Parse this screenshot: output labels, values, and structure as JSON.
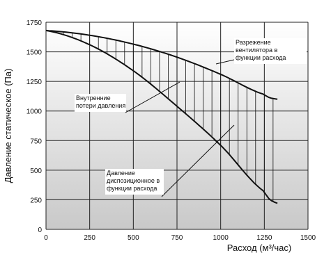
{
  "chart_data": {
    "type": "line",
    "xlabel": "Расход (м³/час)",
    "ylabel": "Давление статическое (Па)",
    "xlim": [
      0,
      1500
    ],
    "ylim": [
      0,
      1750
    ],
    "x_ticks": [
      "0",
      "250",
      "500",
      "750",
      "1000",
      "1250",
      "1500"
    ],
    "y_ticks": [
      "0",
      "250",
      "500",
      "750",
      "1000",
      "1250",
      "1500",
      "1750"
    ],
    "grid": true,
    "background": "vertical gradient from white to light grey",
    "series": [
      {
        "label": "Разрежение вентилятора в функции расхода",
        "x": [
          0,
          250,
          500,
          750,
          1000,
          1250,
          1325
        ],
        "y": [
          1680,
          1640,
          1565,
          1455,
          1310,
          1140,
          1100
        ]
      },
      {
        "label": "Давление диспозиционное в функции расхода",
        "x": [
          0,
          250,
          500,
          750,
          1000,
          1250,
          1325
        ],
        "y": [
          1680,
          1560,
          1340,
          1040,
          710,
          320,
          220
        ]
      }
    ],
    "hatch_region_label": "Внутренние потери давления",
    "annotations": [
      {
        "lines": [
          "Разрежение",
          "вентилятора в",
          "функции расхода"
        ]
      },
      {
        "lines": [
          "Внутренние",
          "потери давления"
        ]
      },
      {
        "lines": [
          "Давление",
          "диспозиционное в",
          "функции расхода"
        ]
      }
    ]
  }
}
